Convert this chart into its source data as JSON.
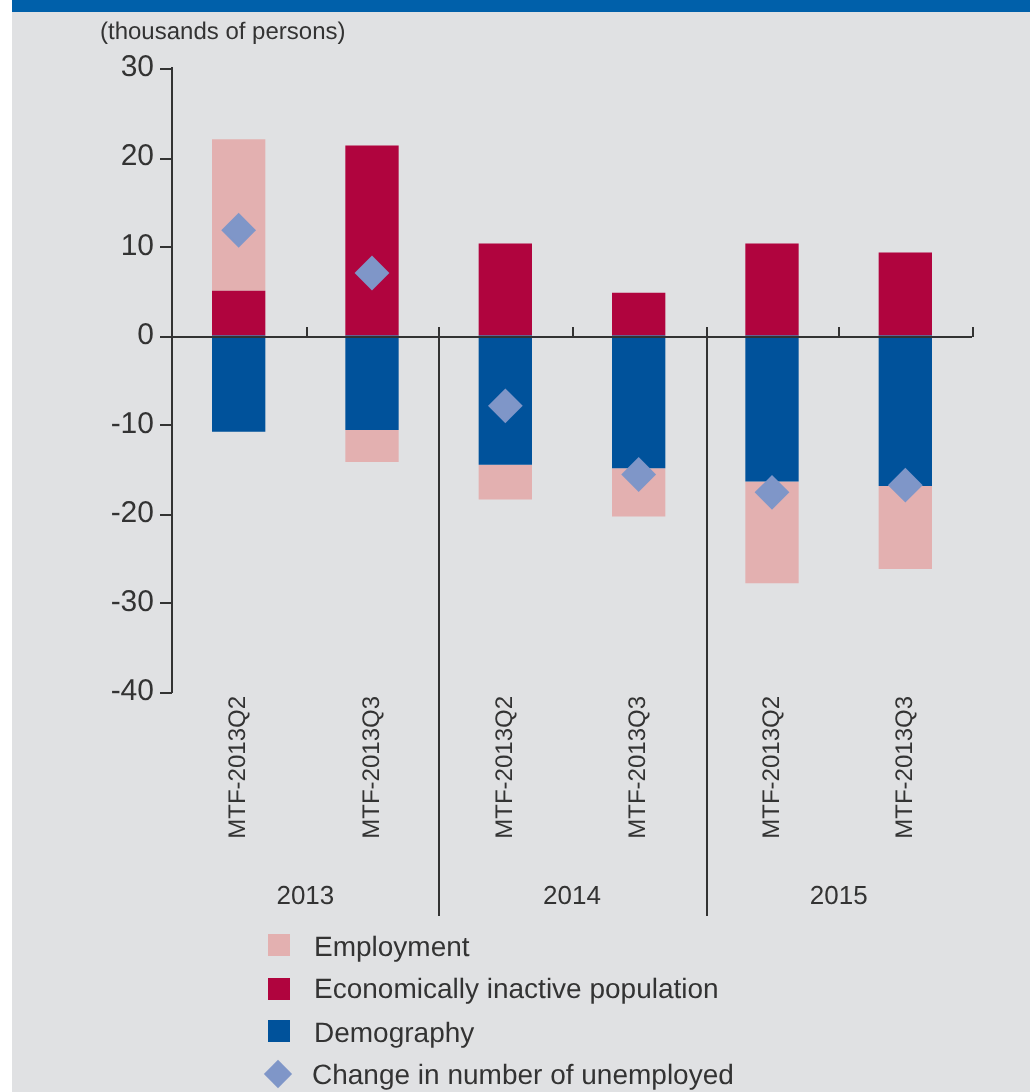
{
  "chart_data": {
    "type": "bar",
    "stacked": true,
    "ylabel": "(thousands of persons)",
    "categories": [
      "MTF-2013Q2",
      "MTF-2013Q3",
      "MTF-2013Q2",
      "MTF-2013Q3",
      "MTF-2013Q2",
      "MTF-2013Q3"
    ],
    "annotations": [
      "2013",
      "2014",
      "2015"
    ],
    "series": [
      {
        "name": "Demography",
        "color": "#00529b",
        "values": [
          -10.8,
          -10.6,
          -14.5,
          -14.9,
          -16.4,
          -16.9
        ]
      },
      {
        "name": "Economically inactive population",
        "color": "#b0043e",
        "values": [
          5,
          21.3,
          10.3,
          4.8,
          10.3,
          9.3
        ]
      },
      {
        "name": "Employment",
        "color": "#e3b0b0",
        "values": [
          17,
          -3.6,
          -3.9,
          -5.4,
          -11.4,
          -9.3
        ]
      },
      {
        "name": "Change in number of unemployed",
        "type": "scatter",
        "marker": "diamond",
        "color": "#7f96c8",
        "values": [
          11.8,
          7.0,
          -7.9,
          -15.6,
          -17.6,
          -16.8
        ]
      }
    ],
    "ref_lines": [
      {
        "axis": "y",
        "value": 0,
        "color": "#333333"
      }
    ],
    "ylim": [
      -40,
      30
    ],
    "yticks": [
      -40,
      -30,
      -20,
      -10,
      0,
      10,
      20,
      30
    ],
    "grid": false,
    "legend": "bottom"
  }
}
